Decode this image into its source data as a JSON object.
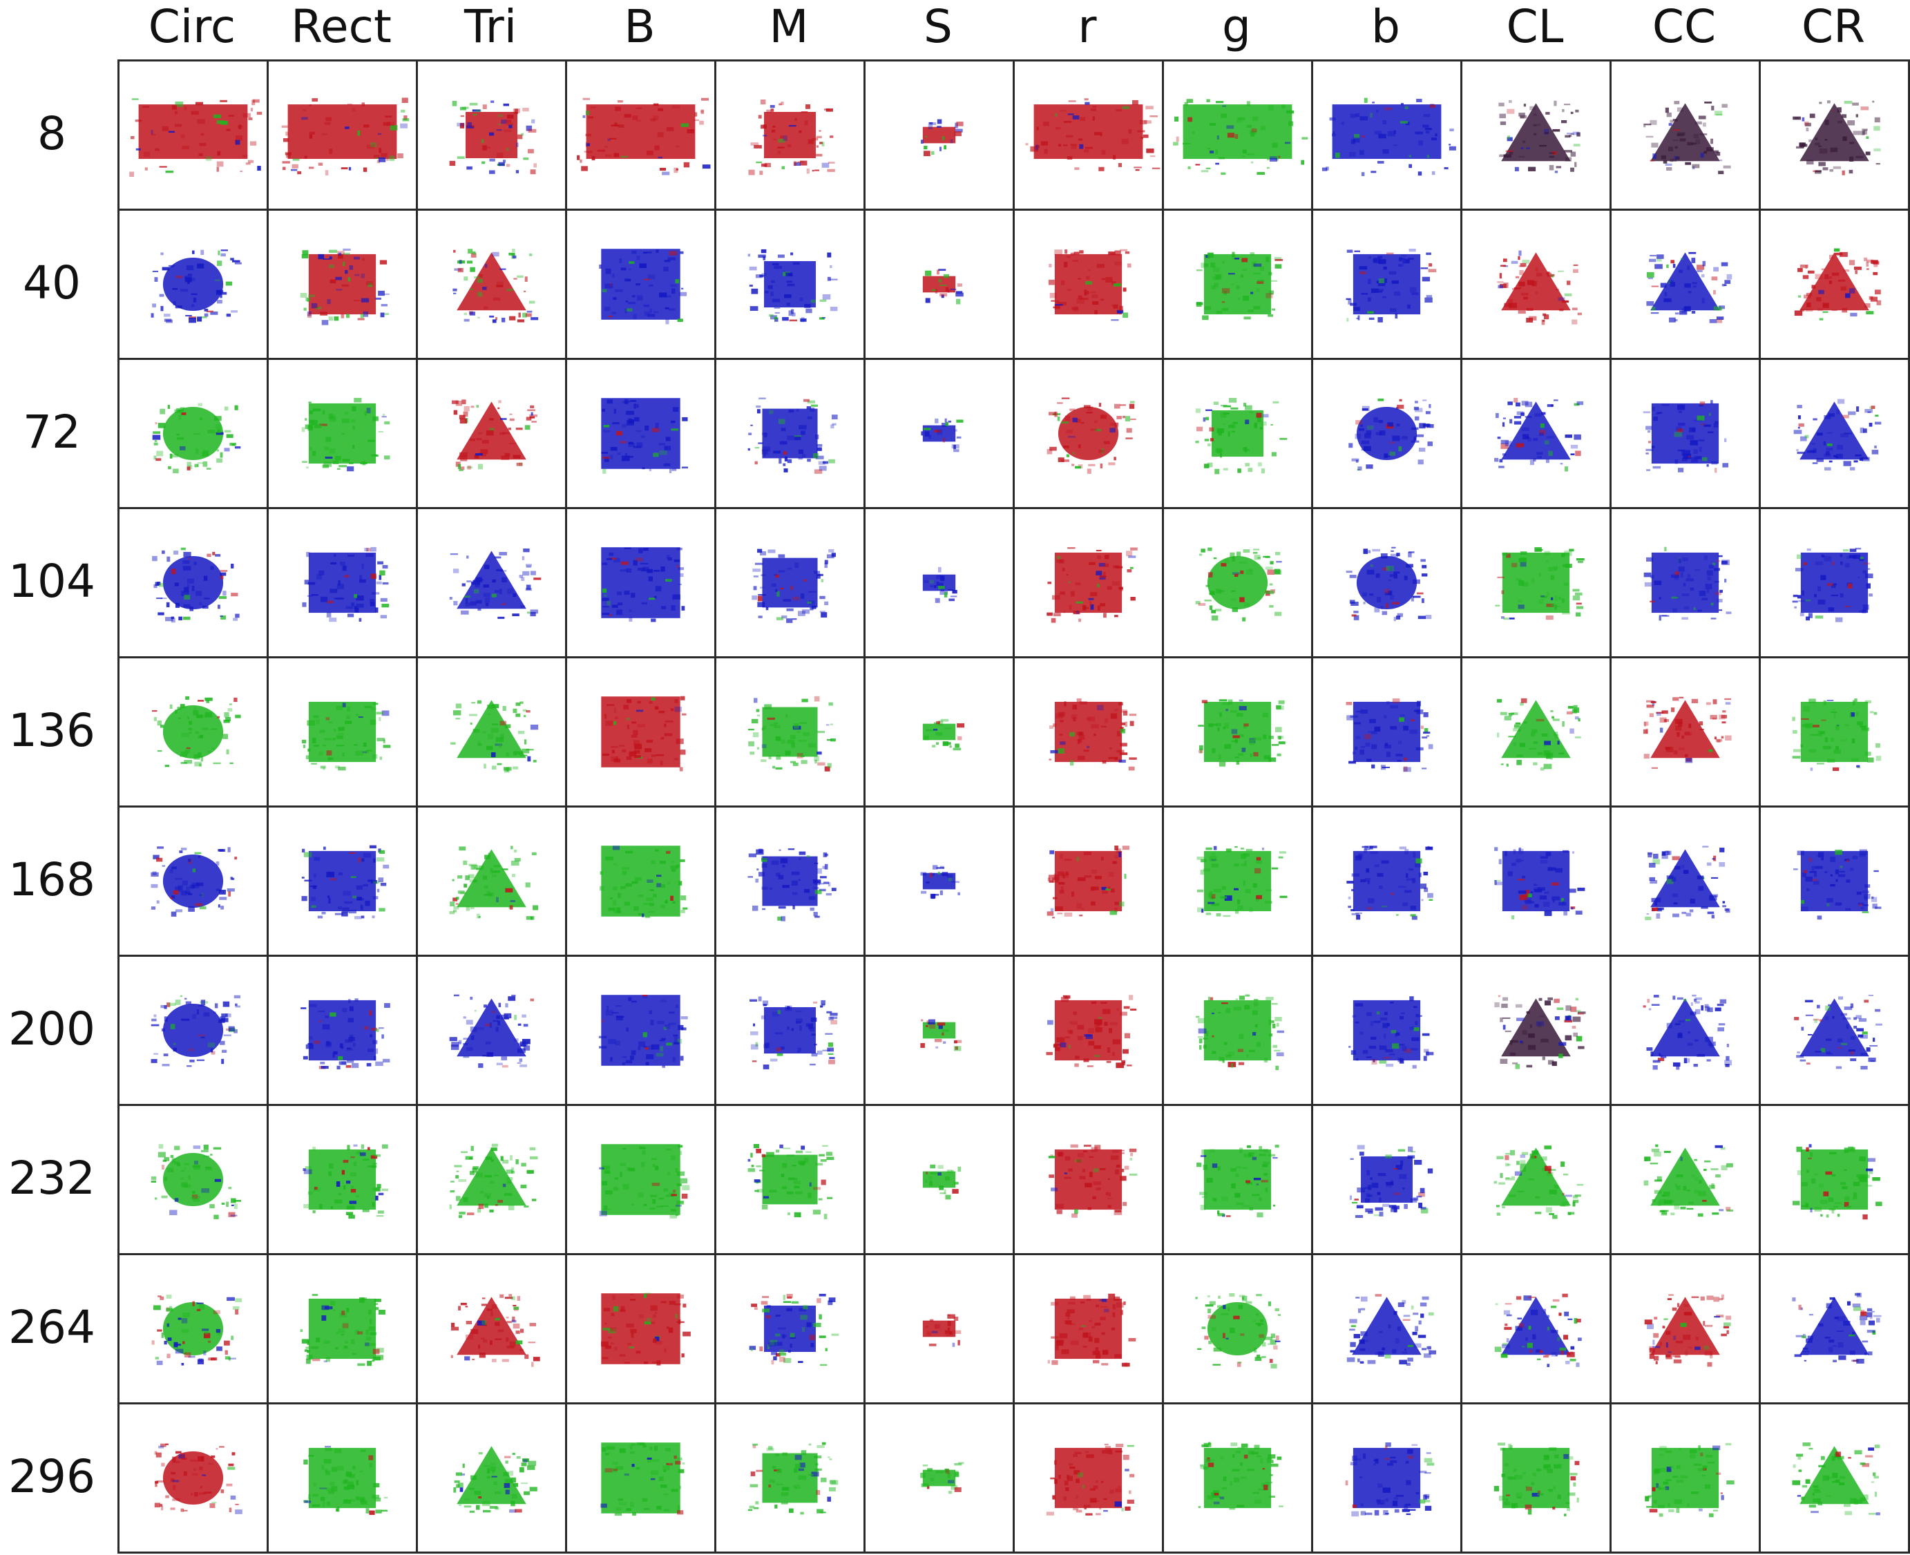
{
  "columns": [
    "Circ",
    "Rect",
    "Tri",
    "B",
    "M",
    "S",
    "r",
    "g",
    "b",
    "CL",
    "CC",
    "CR"
  ],
  "rows": [
    "8",
    "40",
    "72",
    "104",
    "136",
    "168",
    "200",
    "232",
    "264",
    "296"
  ],
  "colors": {
    "red": "#c0131c",
    "green": "#1fb51f",
    "blue": "#1418c2",
    "dark": "#3a1a3a"
  },
  "cells": [
    [
      "red-noise",
      "red-noise",
      "mixed-small",
      "red-noise",
      "red-small",
      "mixed-tiny",
      "red-noise",
      "green-noise",
      "blue-noise",
      "dark-tri",
      "dark-tri",
      "dark-tri"
    ],
    [
      "blue-circ",
      "mixed-rect",
      "mixed-tri",
      "blue-rect",
      "blue-small",
      "mixed-tiny",
      "red-rect",
      "green-rect",
      "blue-rect",
      "red-tri",
      "blue-tri",
      "red-tri"
    ],
    [
      "green-circ",
      "green-rect",
      "red-tri",
      "blue-rect",
      "blue-rect",
      "blue-tiny",
      "red-circ",
      "green-small",
      "blue-circ",
      "blue-tri",
      "blue-rect",
      "blue-tri"
    ],
    [
      "blue-circ",
      "blue-rect",
      "blue-tri",
      "blue-rect",
      "blue-rect",
      "blue-tiny",
      "red-rect",
      "green-circ",
      "blue-circ",
      "green-rect",
      "blue-rect",
      "blue-rect"
    ],
    [
      "green-circ",
      "green-rect",
      "green-tri",
      "red-rect",
      "green-rect",
      "green-tiny",
      "red-rect",
      "green-rect",
      "blue-rect",
      "green-tri",
      "red-tri",
      "green-rect"
    ],
    [
      "blue-circ",
      "blue-rect",
      "green-tri",
      "green-rect",
      "blue-rect",
      "blue-tiny",
      "red-rect",
      "green-rect",
      "blue-rect",
      "blue-rect",
      "blue-tri",
      "blue-rect"
    ],
    [
      "blue-circ",
      "blue-rect",
      "blue-tri",
      "blue-rect",
      "blue-small",
      "mixed-tiny",
      "red-rect",
      "green-rect",
      "blue-rect",
      "dark-tri",
      "blue-tri",
      "blue-tri"
    ],
    [
      "green-circ",
      "green-rect",
      "green-tri",
      "green-rect",
      "green-rect",
      "green-tiny",
      "red-rect",
      "green-rect",
      "blue-small",
      "green-tri",
      "green-tri",
      "green-rect"
    ],
    [
      "mixed-circ",
      "green-rect",
      "red-tri",
      "red-rect",
      "mixed-small",
      "red-tiny",
      "red-rect",
      "green-circ",
      "blue-tri",
      "mixed-tri",
      "red-tri",
      "blue-tri"
    ],
    [
      "red-circ",
      "green-rect",
      "green-tri",
      "green-rect",
      "green-rect",
      "green-tiny",
      "red-rect",
      "green-rect",
      "blue-rect",
      "green-rect",
      "green-rect",
      "green-tri"
    ]
  ]
}
